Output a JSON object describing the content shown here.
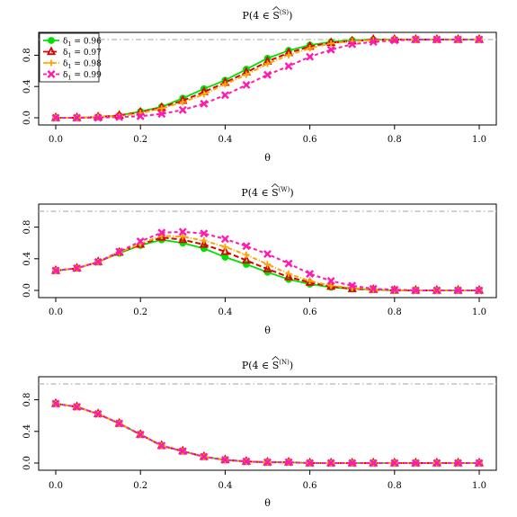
{
  "chart_data": [
    {
      "type": "line",
      "title": "P(4 ∈ Ŝ(S))",
      "title_main": "P(4 ∈ ",
      "title_hat": "S",
      "title_sup": "(S)",
      "title_close": ")",
      "xlabel": "θ",
      "ylabel": "",
      "xlim": [
        0,
        1
      ],
      "ylim": [
        0,
        1
      ],
      "x_ticks": [
        "0.0",
        "0.2",
        "0.4",
        "0.6",
        "0.8",
        "1.0"
      ],
      "y_ticks": [
        "0.0",
        "0.4",
        "0.8"
      ],
      "reference_line": 1.0,
      "legend": "top-left",
      "x": [
        0,
        0.05,
        0.1,
        0.15,
        0.2,
        0.25,
        0.3,
        0.35,
        0.4,
        0.45,
        0.5,
        0.55,
        0.6,
        0.65,
        0.7,
        0.75,
        0.8,
        0.85,
        0.9,
        0.95,
        1.0
      ],
      "series": [
        {
          "name": "δ1 = 0.96",
          "color": "#00e000",
          "marker": "circle",
          "values": [
            0.0,
            0.0,
            0.01,
            0.03,
            0.08,
            0.14,
            0.25,
            0.37,
            0.48,
            0.62,
            0.76,
            0.86,
            0.93,
            0.97,
            0.99,
            1.0,
            1.0,
            1.0,
            1.0,
            1.0,
            1.0
          ]
        },
        {
          "name": "δ1 = 0.97",
          "color": "#dd0000",
          "marker": "triangle",
          "values": [
            0.0,
            0.0,
            0.01,
            0.03,
            0.07,
            0.13,
            0.22,
            0.33,
            0.45,
            0.58,
            0.72,
            0.83,
            0.91,
            0.96,
            0.98,
            1.0,
            1.0,
            1.0,
            1.0,
            1.0,
            1.0
          ]
        },
        {
          "name": "δ1 = 0.98",
          "color": "#ffa500",
          "marker": "plus",
          "values": [
            0.0,
            0.0,
            0.01,
            0.02,
            0.06,
            0.12,
            0.2,
            0.3,
            0.43,
            0.55,
            0.69,
            0.8,
            0.89,
            0.95,
            0.98,
            0.99,
            1.0,
            1.0,
            1.0,
            1.0,
            1.0
          ]
        },
        {
          "name": "δ1 = 0.99",
          "color": "#ff1ab0",
          "marker": "cross",
          "values": [
            0.0,
            0.0,
            0.0,
            0.01,
            0.02,
            0.05,
            0.1,
            0.18,
            0.29,
            0.42,
            0.55,
            0.66,
            0.78,
            0.87,
            0.94,
            0.97,
            0.99,
            1.0,
            1.0,
            1.0,
            1.0
          ]
        }
      ]
    },
    {
      "type": "line",
      "title": "P(4 ∈ Ŝ(W))",
      "title_main": "P(4 ∈ ",
      "title_hat": "S",
      "title_sup": "(W)",
      "title_close": ")",
      "xlabel": "θ",
      "ylabel": "",
      "xlim": [
        0,
        1
      ],
      "ylim": [
        0,
        1
      ],
      "x_ticks": [
        "0.0",
        "0.2",
        "0.4",
        "0.6",
        "0.8",
        "1.0"
      ],
      "y_ticks": [
        "0.0",
        "0.4",
        "0.8"
      ],
      "reference_line": 1.0,
      "legend": "none",
      "x": [
        0,
        0.05,
        0.1,
        0.15,
        0.2,
        0.25,
        0.3,
        0.35,
        0.4,
        0.45,
        0.5,
        0.55,
        0.6,
        0.65,
        0.7,
        0.75,
        0.8,
        0.85,
        0.9,
        0.95,
        1.0
      ],
      "series": [
        {
          "name": "δ1 = 0.96",
          "color": "#00e000",
          "marker": "circle",
          "values": [
            0.25,
            0.28,
            0.36,
            0.47,
            0.57,
            0.64,
            0.6,
            0.53,
            0.42,
            0.33,
            0.23,
            0.14,
            0.08,
            0.04,
            0.02,
            0.01,
            0.0,
            0.0,
            0.0,
            0.0,
            0.0
          ]
        },
        {
          "name": "δ1 = 0.97",
          "color": "#dd0000",
          "marker": "triangle",
          "values": [
            0.25,
            0.28,
            0.36,
            0.48,
            0.58,
            0.67,
            0.64,
            0.58,
            0.49,
            0.38,
            0.27,
            0.17,
            0.1,
            0.05,
            0.02,
            0.01,
            0.0,
            0.0,
            0.0,
            0.0,
            0.0
          ]
        },
        {
          "name": "δ1 = 0.98",
          "color": "#ffa500",
          "marker": "plus",
          "values": [
            0.25,
            0.28,
            0.36,
            0.48,
            0.59,
            0.69,
            0.68,
            0.63,
            0.55,
            0.45,
            0.33,
            0.21,
            0.12,
            0.06,
            0.03,
            0.01,
            0.0,
            0.0,
            0.0,
            0.0,
            0.0
          ]
        },
        {
          "name": "δ1 = 0.99",
          "color": "#ff1ab0",
          "marker": "cross",
          "values": [
            0.25,
            0.28,
            0.36,
            0.49,
            0.62,
            0.73,
            0.74,
            0.72,
            0.65,
            0.56,
            0.46,
            0.34,
            0.21,
            0.12,
            0.06,
            0.02,
            0.01,
            0.0,
            0.0,
            0.0,
            0.0
          ]
        }
      ]
    },
    {
      "type": "line",
      "title": "P(4 ∈ Ŝ(N))",
      "title_main": "P(4 ∈ ",
      "title_hat": "S",
      "title_sup": "(N)",
      "title_close": ")",
      "xlabel": "θ",
      "ylabel": "",
      "xlim": [
        0,
        1
      ],
      "ylim": [
        0,
        1
      ],
      "x_ticks": [
        "0.0",
        "0.2",
        "0.4",
        "0.6",
        "0.8",
        "1.0"
      ],
      "y_ticks": [
        "0.0",
        "0.4",
        "0.8"
      ],
      "reference_line": 1.0,
      "legend": "none",
      "x": [
        0,
        0.05,
        0.1,
        0.15,
        0.2,
        0.25,
        0.3,
        0.35,
        0.4,
        0.45,
        0.5,
        0.55,
        0.6,
        0.65,
        0.7,
        0.75,
        0.8,
        0.85,
        0.9,
        0.95,
        1.0
      ],
      "series": [
        {
          "name": "δ1 = 0.96",
          "color": "#00e000",
          "marker": "circle",
          "values": [
            0.75,
            0.71,
            0.62,
            0.5,
            0.36,
            0.22,
            0.15,
            0.08,
            0.04,
            0.02,
            0.01,
            0.01,
            0.0,
            0.0,
            0.0,
            0.0,
            0.0,
            0.0,
            0.0,
            0.0,
            0.0
          ]
        },
        {
          "name": "δ1 = 0.97",
          "color": "#dd0000",
          "marker": "triangle",
          "values": [
            0.75,
            0.71,
            0.62,
            0.5,
            0.36,
            0.22,
            0.15,
            0.08,
            0.04,
            0.02,
            0.01,
            0.01,
            0.0,
            0.0,
            0.0,
            0.0,
            0.0,
            0.0,
            0.0,
            0.0,
            0.0
          ]
        },
        {
          "name": "δ1 = 0.98",
          "color": "#ffa500",
          "marker": "plus",
          "values": [
            0.75,
            0.71,
            0.62,
            0.5,
            0.36,
            0.22,
            0.15,
            0.08,
            0.04,
            0.02,
            0.01,
            0.01,
            0.0,
            0.0,
            0.0,
            0.0,
            0.0,
            0.0,
            0.0,
            0.0,
            0.0
          ]
        },
        {
          "name": "δ1 = 0.99",
          "color": "#ff1ab0",
          "marker": "cross",
          "values": [
            0.75,
            0.71,
            0.62,
            0.5,
            0.36,
            0.22,
            0.15,
            0.08,
            0.04,
            0.02,
            0.01,
            0.01,
            0.0,
            0.0,
            0.0,
            0.0,
            0.0,
            0.0,
            0.0,
            0.0,
            0.0
          ]
        }
      ]
    }
  ],
  "legend_items": [
    {
      "prefix": "δ",
      "sub": "1",
      "suffix": " = 0.96"
    },
    {
      "prefix": "δ",
      "sub": "1",
      "suffix": " = 0.97"
    },
    {
      "prefix": "δ",
      "sub": "1",
      "suffix": " = 0.98"
    },
    {
      "prefix": "δ",
      "sub": "1",
      "suffix": " = 0.99"
    }
  ]
}
